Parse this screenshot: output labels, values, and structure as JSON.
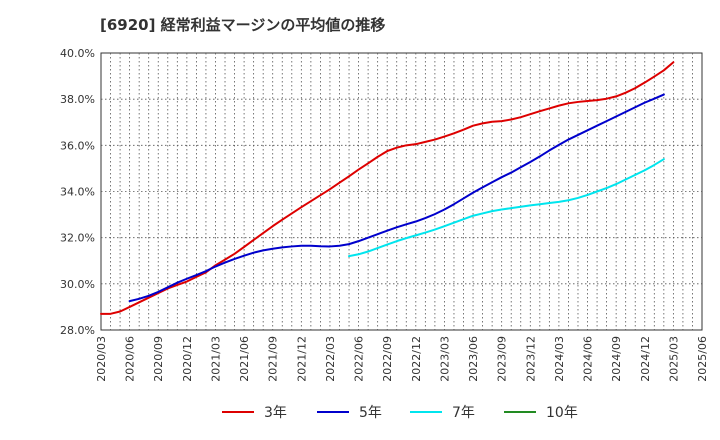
{
  "chart_data": {
    "type": "line",
    "title": "[6920]  経常利益マージンの平均値の推移",
    "xlabel": "",
    "ylabel": "",
    "ylim": [
      28.0,
      40.0
    ],
    "yticks": [
      28.0,
      30.0,
      32.0,
      34.0,
      36.0,
      38.0,
      40.0
    ],
    "ytick_labels": [
      "28.0%",
      "30.0%",
      "32.0%",
      "34.0%",
      "36.0%",
      "38.0%",
      "40.0%"
    ],
    "x_ticks": [
      "2020/03",
      "2020/06",
      "2020/09",
      "2020/12",
      "2021/03",
      "2021/06",
      "2021/09",
      "2021/12",
      "2022/03",
      "2022/06",
      "2022/09",
      "2022/12",
      "2023/03",
      "2023/06",
      "2023/09",
      "2023/12",
      "2024/03",
      "2024/06",
      "2024/09",
      "2024/12",
      "2025/03",
      "2025/06"
    ],
    "grid": true,
    "legend_position": "bottom",
    "series": [
      {
        "name": "3年",
        "color": "#dd0000",
        "points": [
          [
            "2020/03",
            28.7
          ],
          [
            "2020/04",
            28.7
          ],
          [
            "2020/05",
            28.8
          ],
          [
            "2020/06",
            29.0
          ],
          [
            "2020/07",
            29.2
          ],
          [
            "2020/08",
            29.4
          ],
          [
            "2020/09",
            29.6
          ],
          [
            "2020/10",
            29.8
          ],
          [
            "2020/11",
            29.95
          ],
          [
            "2020/12",
            30.1
          ],
          [
            "2021/01",
            30.3
          ],
          [
            "2021/02",
            30.5
          ],
          [
            "2021/03",
            30.8
          ],
          [
            "2021/04",
            31.05
          ],
          [
            "2021/05",
            31.3
          ],
          [
            "2021/06",
            31.6
          ],
          [
            "2021/07",
            31.9
          ],
          [
            "2021/08",
            32.2
          ],
          [
            "2021/09",
            32.5
          ],
          [
            "2021/10",
            32.78
          ],
          [
            "2021/11",
            33.05
          ],
          [
            "2021/12",
            33.32
          ],
          [
            "2022/01",
            33.58
          ],
          [
            "2022/02",
            33.84
          ],
          [
            "2022/03",
            34.1
          ],
          [
            "2022/04",
            34.38
          ],
          [
            "2022/05",
            34.66
          ],
          [
            "2022/06",
            34.95
          ],
          [
            "2022/07",
            35.22
          ],
          [
            "2022/08",
            35.5
          ],
          [
            "2022/09",
            35.75
          ],
          [
            "2022/10",
            35.9
          ],
          [
            "2022/11",
            36.0
          ],
          [
            "2022/12",
            36.05
          ],
          [
            "2022/13",
            36.15
          ],
          [
            "2023/02",
            36.25
          ],
          [
            "2023/03",
            36.38
          ],
          [
            "2023/04",
            36.52
          ],
          [
            "2023/05",
            36.68
          ],
          [
            "2023/06",
            36.85
          ],
          [
            "2023/07",
            36.95
          ],
          [
            "2023/08",
            37.02
          ],
          [
            "2023/09",
            37.05
          ],
          [
            "2023/10",
            37.12
          ],
          [
            "2023/11",
            37.22
          ],
          [
            "2023/12",
            37.35
          ],
          [
            "2024/01",
            37.48
          ],
          [
            "2024/02",
            37.6
          ],
          [
            "2024/03",
            37.72
          ],
          [
            "2024/04",
            37.82
          ],
          [
            "2024/05",
            37.88
          ],
          [
            "2024/06",
            37.92
          ],
          [
            "2024/07",
            37.96
          ],
          [
            "2024/08",
            38.02
          ],
          [
            "2024/09",
            38.12
          ],
          [
            "2024/10",
            38.28
          ],
          [
            "2024/11",
            38.48
          ],
          [
            "2024/12",
            38.72
          ],
          [
            "2025/01",
            38.98
          ],
          [
            "2025/02",
            39.25
          ],
          [
            "2025/03",
            39.6
          ]
        ]
      },
      {
        "name": "5年",
        "color": "#0000cc",
        "points": [
          [
            "2020/06",
            29.25
          ],
          [
            "2020/07",
            29.35
          ],
          [
            "2020/08",
            29.48
          ],
          [
            "2020/09",
            29.65
          ],
          [
            "2020/10",
            29.85
          ],
          [
            "2020/11",
            30.05
          ],
          [
            "2020/12",
            30.22
          ],
          [
            "2021/01",
            30.38
          ],
          [
            "2021/02",
            30.55
          ],
          [
            "2021/03",
            30.75
          ],
          [
            "2021/04",
            30.92
          ],
          [
            "2021/05",
            31.08
          ],
          [
            "2021/06",
            31.22
          ],
          [
            "2021/07",
            31.35
          ],
          [
            "2021/08",
            31.45
          ],
          [
            "2021/09",
            31.52
          ],
          [
            "2021/10",
            31.58
          ],
          [
            "2021/11",
            31.62
          ],
          [
            "2021/12",
            31.65
          ],
          [
            "2022/01",
            31.65
          ],
          [
            "2022/02",
            31.63
          ],
          [
            "2022/03",
            31.62
          ],
          [
            "2022/04",
            31.65
          ],
          [
            "2022/05",
            31.72
          ],
          [
            "2022/06",
            31.85
          ],
          [
            "2022/07",
            32.0
          ],
          [
            "2022/08",
            32.15
          ],
          [
            "2022/09",
            32.3
          ],
          [
            "2022/10",
            32.45
          ],
          [
            "2022/11",
            32.58
          ],
          [
            "2022/12",
            32.7
          ],
          [
            "2022/13",
            32.85
          ],
          [
            "2023/02",
            33.02
          ],
          [
            "2023/03",
            33.22
          ],
          [
            "2023/04",
            33.45
          ],
          [
            "2023/05",
            33.7
          ],
          [
            "2023/06",
            33.95
          ],
          [
            "2023/07",
            34.18
          ],
          [
            "2023/08",
            34.4
          ],
          [
            "2023/09",
            34.62
          ],
          [
            "2023/10",
            34.82
          ],
          [
            "2023/11",
            35.05
          ],
          [
            "2023/12",
            35.28
          ],
          [
            "2024/01",
            35.52
          ],
          [
            "2024/02",
            35.78
          ],
          [
            "2024/03",
            36.02
          ],
          [
            "2024/04",
            36.25
          ],
          [
            "2024/05",
            36.45
          ],
          [
            "2024/06",
            36.65
          ],
          [
            "2024/07",
            36.85
          ],
          [
            "2024/08",
            37.05
          ],
          [
            "2024/09",
            37.25
          ],
          [
            "2024/10",
            37.45
          ],
          [
            "2024/11",
            37.65
          ],
          [
            "2024/12",
            37.85
          ],
          [
            "2025/01",
            38.02
          ],
          [
            "2025/02",
            38.2
          ]
        ]
      },
      {
        "name": "7年",
        "color": "#00e5ee",
        "points": [
          [
            "2022/05",
            31.2
          ],
          [
            "2022/06",
            31.28
          ],
          [
            "2022/07",
            31.4
          ],
          [
            "2022/08",
            31.55
          ],
          [
            "2022/09",
            31.7
          ],
          [
            "2022/10",
            31.85
          ],
          [
            "2022/11",
            31.98
          ],
          [
            "2022/12",
            32.1
          ],
          [
            "2022/13",
            32.22
          ],
          [
            "2023/02",
            32.35
          ],
          [
            "2023/03",
            32.5
          ],
          [
            "2023/04",
            32.65
          ],
          [
            "2023/05",
            32.8
          ],
          [
            "2023/06",
            32.95
          ],
          [
            "2023/07",
            33.05
          ],
          [
            "2023/08",
            33.15
          ],
          [
            "2023/09",
            33.22
          ],
          [
            "2023/10",
            33.28
          ],
          [
            "2023/11",
            33.34
          ],
          [
            "2023/12",
            33.4
          ],
          [
            "2024/01",
            33.45
          ],
          [
            "2024/02",
            33.5
          ],
          [
            "2024/03",
            33.55
          ],
          [
            "2024/04",
            33.62
          ],
          [
            "2024/05",
            33.72
          ],
          [
            "2024/06",
            33.85
          ],
          [
            "2024/07",
            34.0
          ],
          [
            "2024/08",
            34.15
          ],
          [
            "2024/09",
            34.32
          ],
          [
            "2024/10",
            34.52
          ],
          [
            "2024/11",
            34.72
          ],
          [
            "2024/12",
            34.92
          ],
          [
            "2025/01",
            35.15
          ],
          [
            "2025/02",
            35.4
          ]
        ]
      },
      {
        "name": "10年",
        "color": "#228b22",
        "points": []
      }
    ]
  }
}
